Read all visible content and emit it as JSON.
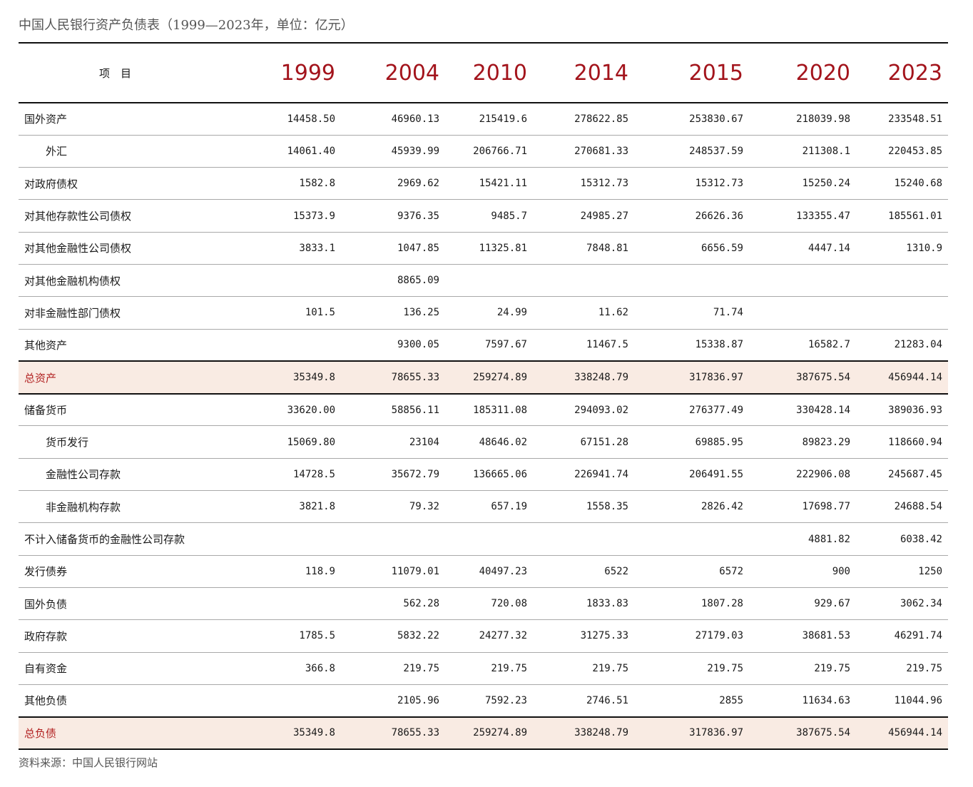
{
  "title": "中国人民银行资产负债表（1999—2023年，单位：亿元）",
  "header": {
    "item_label": "项　目",
    "years": [
      "1999",
      "2004",
      "2010",
      "2014",
      "2015",
      "2020",
      "2023"
    ]
  },
  "rows": [
    {
      "label": "国外资产",
      "indent": false,
      "total": false,
      "values": [
        "14458.50",
        "46960.13",
        "215419.6",
        "278622.85",
        "253830.67",
        "218039.98",
        "233548.51"
      ]
    },
    {
      "label": "外汇",
      "indent": true,
      "total": false,
      "values": [
        "14061.40",
        "45939.99",
        "206766.71",
        "270681.33",
        "248537.59",
        "211308.1",
        "220453.85"
      ]
    },
    {
      "label": "对政府债权",
      "indent": false,
      "total": false,
      "values": [
        "1582.8",
        "2969.62",
        "15421.11",
        "15312.73",
        "15312.73",
        "15250.24",
        "15240.68"
      ]
    },
    {
      "label": "对其他存款性公司债权",
      "indent": false,
      "total": false,
      "values": [
        "15373.9",
        "9376.35",
        "9485.7",
        "24985.27",
        "26626.36",
        "133355.47",
        "185561.01"
      ]
    },
    {
      "label": "对其他金融性公司债权",
      "indent": false,
      "total": false,
      "values": [
        "3833.1",
        "1047.85",
        "11325.81",
        "7848.81",
        "6656.59",
        "4447.14",
        "1310.9"
      ]
    },
    {
      "label": "对其他金融机构债权",
      "indent": false,
      "total": false,
      "values": [
        "",
        "8865.09",
        "",
        "",
        "",
        "",
        ""
      ]
    },
    {
      "label": "对非金融性部门债权",
      "indent": false,
      "total": false,
      "values": [
        "101.5",
        "136.25",
        "24.99",
        "11.62",
        "71.74",
        "",
        ""
      ]
    },
    {
      "label": "其他资产",
      "indent": false,
      "total": false,
      "values": [
        "",
        "9300.05",
        "7597.67",
        "11467.5",
        "15338.87",
        "16582.7",
        "21283.04"
      ]
    },
    {
      "label": "总资产",
      "indent": false,
      "total": true,
      "values": [
        "35349.8",
        "78655.33",
        "259274.89",
        "338248.79",
        "317836.97",
        "387675.54",
        "456944.14"
      ]
    },
    {
      "label": "储备货币",
      "indent": false,
      "total": false,
      "values": [
        "33620.00",
        "58856.11",
        "185311.08",
        "294093.02",
        "276377.49",
        "330428.14",
        "389036.93"
      ]
    },
    {
      "label": "货币发行",
      "indent": true,
      "total": false,
      "values": [
        "15069.80",
        "23104",
        "48646.02",
        "67151.28",
        "69885.95",
        "89823.29",
        "118660.94"
      ]
    },
    {
      "label": "金融性公司存款",
      "indent": true,
      "total": false,
      "values": [
        "14728.5",
        "35672.79",
        "136665.06",
        "226941.74",
        "206491.55",
        "222906.08",
        "245687.45"
      ]
    },
    {
      "label": "非金融机构存款",
      "indent": true,
      "total": false,
      "values": [
        "3821.8",
        "79.32",
        "657.19",
        "1558.35",
        "2826.42",
        "17698.77",
        "24688.54"
      ]
    },
    {
      "label": "不计入储备货币的金融性公司存款",
      "indent": false,
      "total": false,
      "values": [
        "",
        "",
        "",
        "",
        "",
        "4881.82",
        "6038.42"
      ]
    },
    {
      "label": "发行债券",
      "indent": false,
      "total": false,
      "values": [
        "118.9",
        "11079.01",
        "40497.23",
        "6522",
        "6572",
        "900",
        "1250"
      ]
    },
    {
      "label": "国外负债",
      "indent": false,
      "total": false,
      "values": [
        "",
        "562.28",
        "720.08",
        "1833.83",
        "1807.28",
        "929.67",
        "3062.34"
      ]
    },
    {
      "label": "政府存款",
      "indent": false,
      "total": false,
      "values": [
        "1785.5",
        "5832.22",
        "24277.32",
        "31275.33",
        "27179.03",
        "38681.53",
        "46291.74"
      ]
    },
    {
      "label": "自有资金",
      "indent": false,
      "total": false,
      "values": [
        "366.8",
        "219.75",
        "219.75",
        "219.75",
        "219.75",
        "219.75",
        "219.75"
      ]
    },
    {
      "label": "其他负债",
      "indent": false,
      "total": false,
      "values": [
        "",
        "2105.96",
        "7592.23",
        "2746.51",
        "2855",
        "11634.63",
        "11044.96"
      ]
    },
    {
      "label": "总负债",
      "indent": false,
      "total": true,
      "values": [
        "35349.8",
        "78655.33",
        "259274.89",
        "338248.79",
        "317836.97",
        "387675.54",
        "456944.14"
      ]
    }
  ],
  "source": "资料来源：中国人民银行网站",
  "colors": {
    "year_header": "#a3141c",
    "total_label": "#b22222",
    "total_bg": "#f9ebe3"
  }
}
